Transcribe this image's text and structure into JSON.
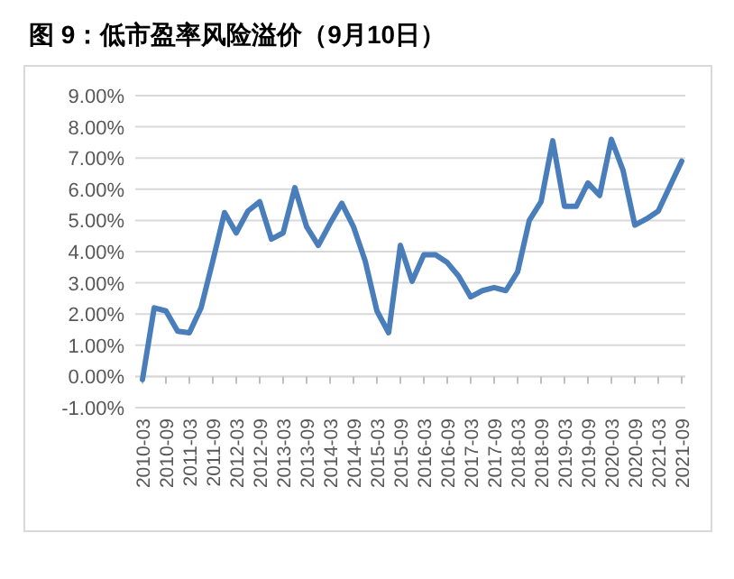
{
  "chart_data": {
    "type": "line",
    "title": "图 9：低市盈率风险溢价（9月10日）",
    "categories": [
      "2010-03",
      null,
      "2010-09",
      null,
      "2011-03",
      null,
      "2011-09",
      null,
      "2012-03",
      null,
      "2012-09",
      null,
      "2013-03",
      null,
      "2013-09",
      null,
      "2014-03",
      null,
      "2014-09",
      null,
      "2015-03",
      null,
      "2015-09",
      null,
      "2016-03",
      null,
      "2016-09",
      null,
      "2017-03",
      null,
      "2017-09",
      null,
      "2018-03",
      null,
      "2018-09",
      null,
      "2019-03",
      null,
      "2019-09",
      null,
      "2020-03",
      null,
      "2020-09",
      null,
      "2021-03",
      null,
      "2021-09"
    ],
    "series": [
      {
        "color": "#4a7ebb",
        "values": [
          -0.1,
          2.2,
          2.1,
          1.45,
          1.4,
          2.2,
          3.7,
          5.25,
          4.6,
          5.3,
          5.6,
          4.4,
          4.6,
          6.05,
          4.8,
          4.2,
          4.9,
          5.55,
          4.8,
          3.7,
          2.1,
          1.4,
          4.2,
          3.05,
          3.9,
          3.9,
          3.65,
          3.2,
          2.55,
          2.75,
          2.85,
          2.75,
          3.35,
          5.0,
          5.6,
          7.55,
          5.45,
          5.45,
          6.2,
          5.8,
          7.6,
          6.6,
          4.85,
          5.05,
          5.3,
          6.1,
          6.9
        ]
      }
    ],
    "ylim": [
      -1,
      9
    ],
    "yticks": [
      {
        "value": -1,
        "label": "-1.00%"
      },
      {
        "value": 0,
        "label": "0.00%"
      },
      {
        "value": 1,
        "label": "1.00%"
      },
      {
        "value": 2,
        "label": "2.00%"
      },
      {
        "value": 3,
        "label": "3.00%"
      },
      {
        "value": 4,
        "label": "4.00%"
      },
      {
        "value": 5,
        "label": "5.00%"
      },
      {
        "value": 6,
        "label": "6.00%"
      },
      {
        "value": 7,
        "label": "7.00%"
      },
      {
        "value": 8,
        "label": "8.00%"
      },
      {
        "value": 9,
        "label": "9.00%"
      }
    ],
    "grid": "y",
    "marker": "none",
    "line_style": "solid"
  }
}
